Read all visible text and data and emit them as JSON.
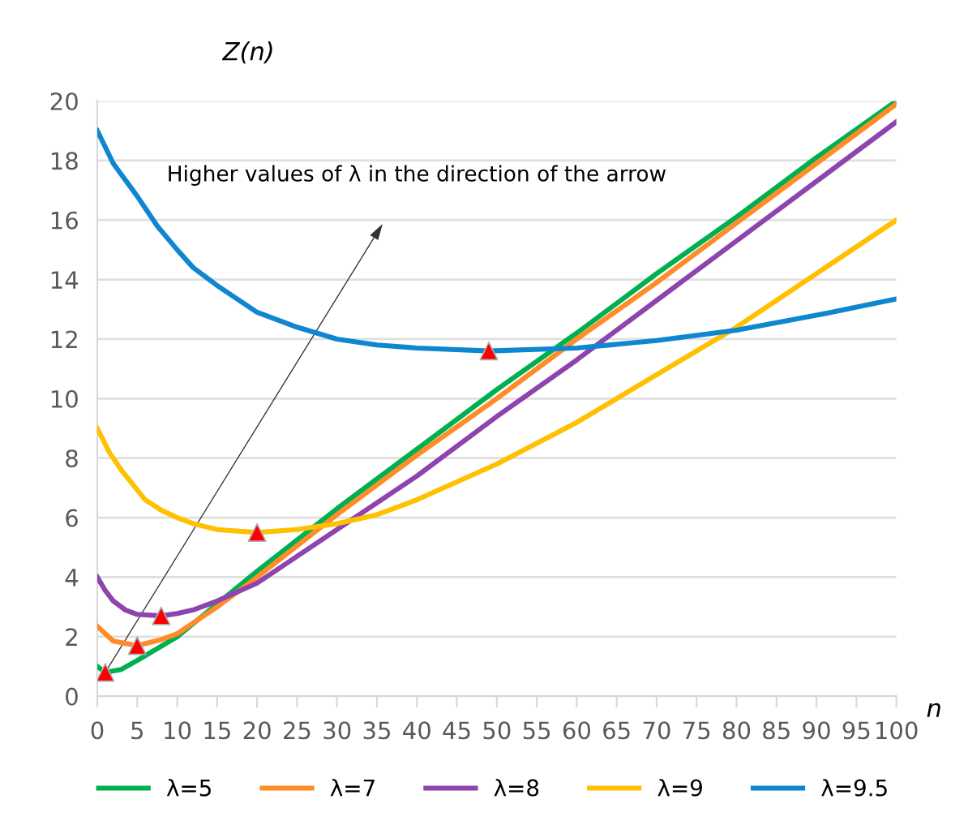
{
  "chart_data": {
    "type": "line",
    "xlabel": "n",
    "ylabel": "Z(n)",
    "annotations": [
      "Higher values of λ in the direction of the arrow"
    ],
    "xlim": [
      0,
      100
    ],
    "xticks": [
      0,
      5,
      10,
      15,
      20,
      25,
      30,
      35,
      40,
      45,
      50,
      55,
      60,
      65,
      70,
      75,
      80,
      85,
      90,
      95,
      100
    ],
    "ylim": [
      0,
      20
    ],
    "yticks": [
      0,
      2,
      4,
      6,
      8,
      10,
      12,
      14,
      16,
      18,
      20
    ],
    "grid": "y",
    "legend": "bottom",
    "marker": "none",
    "line_style": "solid",
    "series": [
      {
        "name": "λ=5",
        "color": "#00b050",
        "x": [
          0,
          1,
          3,
          5,
          10,
          15,
          20,
          30,
          40,
          50,
          60,
          70,
          80,
          90,
          100
        ],
        "values": [
          1.0,
          0.8,
          0.9,
          1.2,
          2.0,
          3.1,
          4.2,
          6.3,
          8.3,
          10.3,
          12.2,
          14.2,
          16.1,
          18.1,
          20.0
        ]
      },
      {
        "name": "λ=7",
        "color": "#ff8c28",
        "x": [
          0,
          2,
          5,
          8,
          10,
          15,
          20,
          30,
          40,
          50,
          60,
          70,
          80,
          90,
          100
        ],
        "values": [
          2.35,
          1.85,
          1.7,
          1.9,
          2.1,
          3.0,
          4.0,
          6.1,
          8.1,
          10.0,
          12.0,
          13.9,
          15.9,
          17.9,
          19.9
        ]
      },
      {
        "name": "λ=8",
        "color": "#8e44ad",
        "x": [
          0,
          1,
          2,
          3.5,
          5,
          8,
          10,
          12,
          15,
          20,
          30,
          40,
          50,
          60,
          70,
          80,
          90,
          100
        ],
        "values": [
          4.0,
          3.55,
          3.2,
          2.9,
          2.75,
          2.7,
          2.78,
          2.9,
          3.2,
          3.8,
          5.6,
          7.4,
          9.4,
          11.3,
          13.3,
          15.3,
          17.3,
          19.3
        ]
      },
      {
        "name": "λ=9",
        "color": "#ffc000",
        "x": [
          0,
          1.5,
          3,
          6,
          8,
          10,
          12,
          15,
          20,
          25,
          30,
          35,
          40,
          50,
          60,
          70,
          80,
          90,
          100
        ],
        "values": [
          9.0,
          8.2,
          7.6,
          6.6,
          6.25,
          6.0,
          5.8,
          5.6,
          5.5,
          5.6,
          5.8,
          6.1,
          6.6,
          7.8,
          9.2,
          10.8,
          12.4,
          14.2,
          16.0
        ]
      },
      {
        "name": "λ=9.5",
        "color": "#0f86d0",
        "x": [
          0,
          2,
          5,
          7.5,
          10,
          12,
          15,
          20,
          25,
          30,
          35,
          40,
          49,
          60,
          70,
          80,
          90,
          100
        ],
        "values": [
          19.0,
          17.9,
          16.8,
          15.8,
          15.0,
          14.4,
          13.8,
          12.9,
          12.4,
          12.0,
          11.8,
          11.7,
          11.6,
          11.7,
          11.95,
          12.3,
          12.8,
          13.35
        ]
      },
      {
        "type": "scatter",
        "marker": "triangle",
        "color": "#ff0000",
        "x": [
          1,
          5,
          8,
          20,
          49
        ],
        "values": [
          0.8,
          1.7,
          2.7,
          5.5,
          11.6
        ]
      }
    ]
  }
}
